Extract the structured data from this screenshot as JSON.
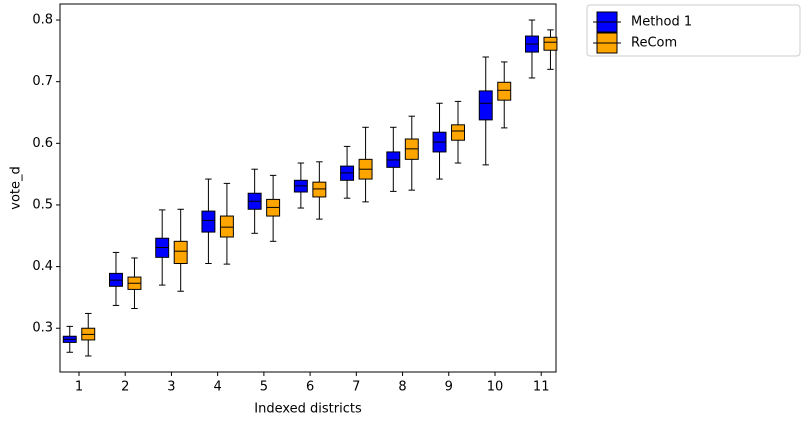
{
  "chart_data": {
    "type": "box",
    "x_label": "Indexed districts",
    "y_label": "vote_d",
    "x": [
      1,
      2,
      3,
      4,
      5,
      6,
      7,
      8,
      9,
      10,
      11
    ],
    "xlim": [
      0.589,
      11.32
    ],
    "xticks": [
      1,
      2,
      3,
      4,
      5,
      6,
      7,
      8,
      9,
      10,
      11
    ],
    "ylim": [
      0.229,
      0.826
    ],
    "yticks": [
      0.3,
      0.4,
      0.5,
      0.6,
      0.7,
      0.8
    ],
    "legend": "outside-upper-right",
    "series": [
      {
        "name": "Method 1",
        "color": "#0000ff",
        "min": [
          0.261,
          0.337,
          0.37,
          0.405,
          0.454,
          0.495,
          0.511,
          0.522,
          0.542,
          0.565,
          0.706
        ],
        "q1": [
          0.277,
          0.368,
          0.415,
          0.456,
          0.493,
          0.521,
          0.54,
          0.561,
          0.586,
          0.638,
          0.748
        ],
        "median": [
          0.282,
          0.378,
          0.431,
          0.475,
          0.506,
          0.531,
          0.552,
          0.573,
          0.602,
          0.665,
          0.761
        ],
        "q3": [
          0.287,
          0.389,
          0.446,
          0.49,
          0.519,
          0.54,
          0.563,
          0.586,
          0.618,
          0.685,
          0.774
        ],
        "max": [
          0.303,
          0.423,
          0.492,
          0.542,
          0.558,
          0.568,
          0.595,
          0.626,
          0.665,
          0.74,
          0.8
        ]
      },
      {
        "name": "ReCom",
        "color": "#ffa500",
        "min": [
          0.255,
          0.332,
          0.36,
          0.404,
          0.441,
          0.477,
          0.505,
          0.524,
          0.568,
          0.625,
          0.72
        ],
        "q1": [
          0.281,
          0.363,
          0.405,
          0.448,
          0.482,
          0.513,
          0.542,
          0.574,
          0.605,
          0.67,
          0.751
        ],
        "median": [
          0.29,
          0.373,
          0.425,
          0.464,
          0.496,
          0.526,
          0.558,
          0.591,
          0.62,
          0.686,
          0.764
        ],
        "q3": [
          0.3,
          0.383,
          0.441,
          0.482,
          0.509,
          0.537,
          0.574,
          0.607,
          0.63,
          0.699,
          0.772
        ],
        "max": [
          0.324,
          0.414,
          0.493,
          0.535,
          0.548,
          0.57,
          0.626,
          0.644,
          0.668,
          0.732,
          0.784
        ]
      }
    ]
  }
}
